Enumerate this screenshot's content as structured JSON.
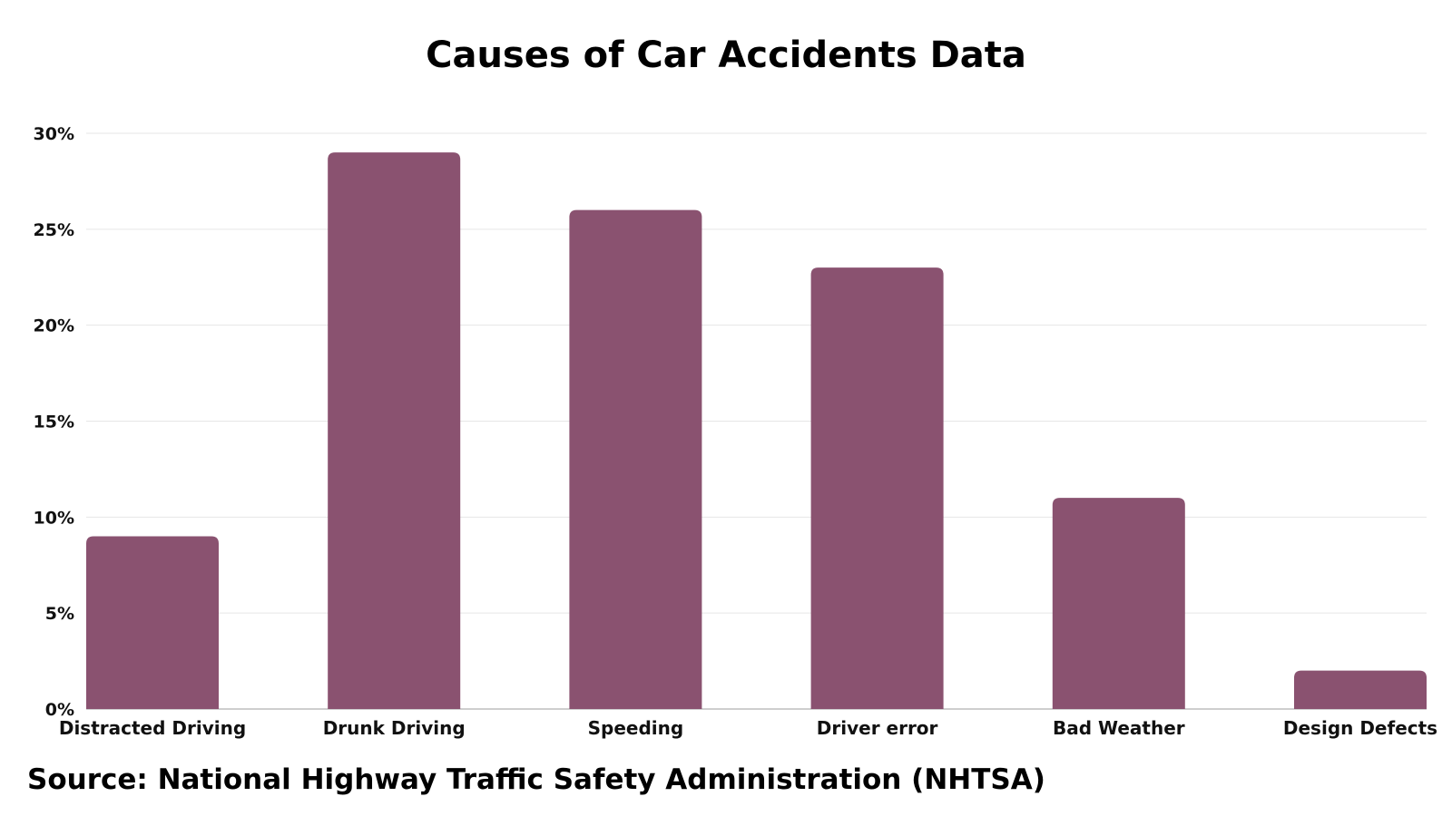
{
  "chart_data": {
    "type": "bar",
    "title": "Causes of Car Accidents Data",
    "categories": [
      "Distracted Driving",
      "Drunk Driving",
      "Speeding",
      "Driver error",
      "Bad Weather",
      "Design Defects"
    ],
    "values": [
      9,
      29,
      26,
      23,
      11,
      2
    ],
    "yticks": [
      "0%",
      "5%",
      "10%",
      "15%",
      "20%",
      "25%",
      "30%"
    ],
    "ylim": [
      0,
      30
    ],
    "grid": true,
    "bar_color": "#8a5270",
    "grid_color": "#e6e6e6",
    "source": "Source: National Highway Traffic Safety Administration (NHTSA)"
  }
}
